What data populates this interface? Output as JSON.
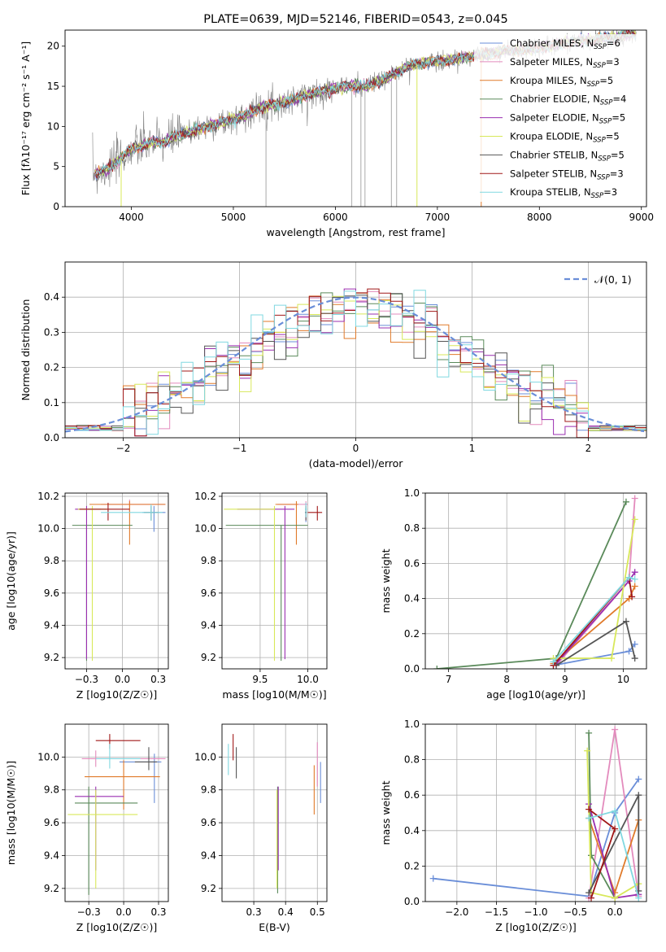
{
  "colors": {
    "Chabrier MILES": "#6a8ed8",
    "Salpeter MILES": "#e38bbd",
    "Kroupa MILES": "#e07a2a",
    "Chabrier ELODIE": "#5a8a5a",
    "Salpeter ELODIE": "#9a2fb0",
    "Kroupa ELODIE": "#d8e85a",
    "Chabrier STELIB": "#555555",
    "Salpeter STELIB": "#a01818",
    "Kroupa STELIB": "#80d8e0",
    "data": "#808080",
    "normal": "#6a8ed8"
  },
  "chart_data": [
    {
      "id": "spectrum",
      "type": "line",
      "title": "PLATE=0639, MJD=52146, FIBERID=0543, z=0.045",
      "xlabel": "wavelength [Angstrom, rest frame]",
      "ylabel": "Flux [fλ10⁻¹⁷ erg cm⁻² s⁻¹ A⁻¹]",
      "xlim": [
        3350,
        9050
      ],
      "ylim": [
        0,
        22
      ],
      "xticks": [
        4000,
        5000,
        6000,
        7000,
        8000,
        9000
      ],
      "yticks": [
        0,
        5,
        10,
        15,
        20
      ],
      "legend_position": "top-right",
      "legend": [
        {
          "name": "Chabrier MILES",
          "nssp": "6"
        },
        {
          "name": "Salpeter MILES",
          "nssp": "3"
        },
        {
          "name": "Kroupa MILES",
          "nssp": "5"
        },
        {
          "name": "Chabrier ELODIE",
          "nssp": "4"
        },
        {
          "name": "Salpeter ELODIE",
          "nssp": "5"
        },
        {
          "name": "Kroupa ELODIE",
          "nssp": "5"
        },
        {
          "name": "Chabrier STELIB",
          "nssp": "5"
        },
        {
          "name": "Salpeter STELIB",
          "nssp": "3"
        },
        {
          "name": "Kroupa STELIB",
          "nssp": "3"
        }
      ],
      "legend_suffix": "SSP",
      "legend_prefix": "N",
      "continuum": {
        "x": [
          3620,
          3700,
          3800,
          3900,
          4000,
          4100,
          4200,
          4300,
          4400,
          4500,
          4700,
          4900,
          5100,
          5300,
          5500,
          5700,
          5900,
          6100,
          6300,
          6500,
          6700,
          6900,
          7100,
          7300,
          7500,
          7700,
          7900,
          8100,
          8300,
          8500,
          8700,
          8900
        ],
        "y": [
          4.2,
          4.3,
          5.0,
          6.0,
          7.2,
          7.5,
          8.0,
          8.0,
          8.6,
          9.0,
          9.8,
          10.5,
          11.3,
          12.5,
          13.0,
          13.8,
          14.5,
          15.0,
          15.0,
          16.0,
          17.5,
          18.0,
          18.2,
          18.7,
          19.0,
          19.5,
          19.5,
          20.0,
          20.5,
          20.8,
          21.0,
          21.5
        ]
      }
    },
    {
      "id": "residuals",
      "type": "histogram",
      "xlabel": "(data-model)/error",
      "ylabel": "Normed distribution",
      "xlim": [
        -2.5,
        2.5
      ],
      "ylim": [
        0,
        0.5
      ],
      "xticks": [
        -2,
        -1,
        0,
        1,
        2
      ],
      "yticks": [
        0.0,
        0.1,
        0.2,
        0.3,
        0.4
      ],
      "grid": true,
      "legend_position": "top-right",
      "normal_label": "𝒩(0, 1)",
      "bin_width": 0.1
    },
    {
      "id": "age-vs-Z",
      "type": "errorbar",
      "xlabel": "Z [log10(Z/Z☉)]",
      "ylabel": "age  [log10(age/yr)]",
      "xlim": [
        -0.4,
        0.32
      ],
      "ylim": [
        9.13,
        10.22
      ],
      "xticks": [
        -0.25,
        0.0,
        0.25
      ],
      "yticks": [
        9.2,
        9.4,
        9.6,
        9.8,
        10.0,
        10.2
      ],
      "grid": true,
      "points": [
        {
          "model": "Chabrier MILES",
          "x": 0.22,
          "xerr": [
            0.08,
            0.08
          ],
          "y": 10.1,
          "yerr": [
            0.12,
            0.04
          ]
        },
        {
          "model": "Salpeter MILES",
          "x": 0.05,
          "xerr": [
            0.2,
            0.25
          ],
          "y": 10.15,
          "yerr": [
            0.05,
            0.03
          ]
        },
        {
          "model": "Kroupa MILES",
          "x": 0.05,
          "xerr": [
            0.28,
            0.25
          ],
          "y": 10.15,
          "yerr": [
            0.25,
            0.02
          ]
        },
        {
          "model": "Chabrier ELODIE",
          "x": -0.25,
          "xerr": [
            0.1,
            0.32
          ],
          "y": 10.02,
          "yerr": [
            0.84,
            0.0
          ]
        },
        {
          "model": "Salpeter ELODIE",
          "x": -0.25,
          "xerr": [
            0.08,
            0.1
          ],
          "y": 10.12,
          "yerr": [
            0.93,
            0.02
          ]
        },
        {
          "model": "Kroupa ELODIE",
          "x": -0.21,
          "xerr": [
            0.1,
            0.1
          ],
          "y": 10.12,
          "yerr": [
            0.94,
            0.02
          ]
        },
        {
          "model": "Chabrier STELIB",
          "x": 0.2,
          "xerr": [
            0.05,
            0.05
          ],
          "y": 10.1,
          "yerr": [
            0.05,
            0.04
          ]
        },
        {
          "model": "Salpeter STELIB",
          "x": -0.1,
          "xerr": [
            0.2,
            0.15
          ],
          "y": 10.12,
          "yerr": [
            0.07,
            0.04
          ]
        },
        {
          "model": "Kroupa STELIB",
          "x": 0.2,
          "xerr": [
            0.35,
            0.08
          ],
          "y": 10.1,
          "yerr": [
            0.05,
            0.05
          ]
        }
      ]
    },
    {
      "id": "age-vs-mass",
      "type": "errorbar",
      "xlabel": "mass [log10(M/M☉)]",
      "ylabel": "",
      "xlim": [
        9.1,
        10.2
      ],
      "ylim": [
        9.13,
        10.22
      ],
      "xticks": [
        9.5,
        10.0
      ],
      "yticks": [
        9.2,
        9.4,
        9.6,
        9.8,
        10.0,
        10.2
      ],
      "grid": true,
      "points": [
        {
          "model": "Chabrier MILES",
          "x": 9.98,
          "xerr": [
            0.01,
            0.01
          ],
          "y": 10.1,
          "yerr": [
            0.06,
            0.02
          ]
        },
        {
          "model": "Salpeter MILES",
          "x": 9.98,
          "xerr": [
            0.3,
            0.02
          ],
          "y": 10.15,
          "yerr": [
            0.1,
            0.02
          ]
        },
        {
          "model": "Kroupa MILES",
          "x": 9.88,
          "xerr": [
            0.22,
            0.02
          ],
          "y": 10.15,
          "yerr": [
            0.25,
            0.02
          ]
        },
        {
          "model": "Chabrier ELODIE",
          "x": 9.72,
          "xerr": [
            0.58,
            0.28
          ],
          "y": 10.02,
          "yerr": [
            0.84,
            0.0
          ]
        },
        {
          "model": "Salpeter ELODIE",
          "x": 9.76,
          "xerr": [
            0.5,
            0.1
          ],
          "y": 10.12,
          "yerr": [
            0.93,
            0.02
          ]
        },
        {
          "model": "Kroupa ELODIE",
          "x": 9.65,
          "xerr": [
            0.53,
            0.0
          ],
          "y": 10.12,
          "yerr": [
            0.94,
            0.02
          ]
        },
        {
          "model": "Chabrier STELIB",
          "x": 9.98,
          "xerr": [
            0.01,
            0.01
          ],
          "y": 10.1,
          "yerr": [
            0.05,
            0.04
          ]
        },
        {
          "model": "Salpeter STELIB",
          "x": 10.1,
          "xerr": [
            0.1,
            0.05
          ],
          "y": 10.1,
          "yerr": [
            0.05,
            0.04
          ]
        },
        {
          "model": "Kroupa STELIB",
          "x": 9.98,
          "xerr": [
            0.01,
            0.01
          ],
          "y": 10.12,
          "yerr": [
            0.05,
            0.04
          ]
        }
      ]
    },
    {
      "id": "weight-vs-age",
      "type": "line",
      "xlabel": "age  [log10(age/yr)]",
      "ylabel": "mass weight",
      "xlim": [
        6.6,
        10.4
      ],
      "ylim": [
        0,
        1.0
      ],
      "xticks": [
        7,
        8,
        9,
        10
      ],
      "yticks": [
        0.0,
        0.2,
        0.4,
        0.6,
        0.8,
        1.0
      ],
      "grid": true,
      "series": [
        {
          "model": "Chabrier MILES",
          "x": [
            8.8,
            10.1,
            10.2
          ],
          "y": [
            0.02,
            0.1,
            0.14
          ]
        },
        {
          "model": "Salpeter MILES",
          "x": [
            8.85,
            10.1,
            10.2
          ],
          "y": [
            0.02,
            0.5,
            0.97
          ]
        },
        {
          "model": "Kroupa MILES",
          "x": [
            8.8,
            10.1,
            10.2
          ],
          "y": [
            0.03,
            0.4,
            0.47
          ]
        },
        {
          "model": "Chabrier ELODIE",
          "x": [
            6.8,
            8.85,
            10.05
          ],
          "y": [
            0.0,
            0.06,
            0.95
          ]
        },
        {
          "model": "Salpeter ELODIE",
          "x": [
            8.85,
            10.1,
            10.2
          ],
          "y": [
            0.03,
            0.5,
            0.55
          ]
        },
        {
          "model": "Kroupa ELODIE",
          "x": [
            8.8,
            9.8,
            10.2
          ],
          "y": [
            0.06,
            0.06,
            0.85
          ]
        },
        {
          "model": "Chabrier STELIB",
          "x": [
            8.85,
            10.05,
            10.2
          ],
          "y": [
            0.02,
            0.27,
            0.06
          ]
        },
        {
          "model": "Salpeter STELIB",
          "x": [
            8.8,
            10.1,
            10.15
          ],
          "y": [
            0.02,
            0.52,
            0.41
          ]
        },
        {
          "model": "Kroupa STELIB",
          "x": [
            8.8,
            10.1,
            10.2
          ],
          "y": [
            0.04,
            0.52,
            0.51
          ]
        }
      ]
    },
    {
      "id": "mass-vs-Z",
      "type": "errorbar",
      "xlabel": "Z [log10(Z/Z☉)]",
      "ylabel": "mass [log10(M/M☉)]",
      "xlim": [
        -0.42,
        0.32
      ],
      "ylim": [
        9.12,
        10.2
      ],
      "xticks": [
        -0.25,
        0.0,
        0.25
      ],
      "yticks": [
        9.2,
        9.4,
        9.6,
        9.8,
        10.0
      ],
      "grid": true,
      "points": [
        {
          "model": "Chabrier MILES",
          "x": 0.22,
          "xerr": [
            0.25,
            0.05
          ],
          "y": 9.97,
          "yerr": [
            0.25,
            0.05
          ]
        },
        {
          "model": "Salpeter MILES",
          "x": -0.2,
          "xerr": [
            0.1,
            0.5
          ],
          "y": 9.99,
          "yerr": [
            0.05,
            0.05
          ]
        },
        {
          "model": "Kroupa MILES",
          "x": 0.0,
          "xerr": [
            0.28,
            0.26
          ],
          "y": 9.88,
          "yerr": [
            0.2,
            0.1
          ]
        },
        {
          "model": "Chabrier ELODIE",
          "x": -0.25,
          "xerr": [
            0.1,
            0.35
          ],
          "y": 9.72,
          "yerr": [
            0.56,
            0.1
          ]
        },
        {
          "model": "Salpeter ELODIE",
          "x": -0.2,
          "xerr": [
            0.15,
            0.2
          ],
          "y": 9.76,
          "yerr": [
            0.45,
            0.06
          ]
        },
        {
          "model": "Kroupa ELODIE",
          "x": -0.2,
          "xerr": [
            0.2,
            0.3
          ],
          "y": 9.65,
          "yerr": [
            0.45,
            0.15
          ]
        },
        {
          "model": "Chabrier STELIB",
          "x": 0.18,
          "xerr": [
            0.1,
            0.06
          ],
          "y": 9.97,
          "yerr": [
            0.05,
            0.09
          ]
        },
        {
          "model": "Salpeter STELIB",
          "x": -0.1,
          "xerr": [
            0.1,
            0.22
          ],
          "y": 10.1,
          "yerr": [
            0.05,
            0.04
          ]
        },
        {
          "model": "Kroupa STELIB",
          "x": -0.1,
          "xerr": [
            0.1,
            0.22
          ],
          "y": 9.99,
          "yerr": [
            0.06,
            0.09
          ]
        }
      ]
    },
    {
      "id": "mass-vs-ebv",
      "type": "errorbar",
      "xlabel": "E(B-V)",
      "ylabel": "",
      "xlim": [
        0.2,
        0.53
      ],
      "ylim": [
        9.12,
        10.2
      ],
      "xticks": [
        0.3,
        0.4,
        0.5
      ],
      "yticks": [
        9.2,
        9.4,
        9.6,
        9.8,
        10.0
      ],
      "grid": true,
      "points": [
        {
          "model": "Chabrier MILES",
          "x": 0.51,
          "yerr": [
            0.25,
            0.0
          ],
          "y": 9.97
        },
        {
          "model": "Salpeter MILES",
          "x": 0.5,
          "yerr": [
            0.15,
            0.12
          ],
          "y": 9.97
        },
        {
          "model": "Kroupa MILES",
          "x": 0.49,
          "yerr": [
            0.23,
            0.07
          ],
          "y": 9.88
        },
        {
          "model": "Chabrier ELODIE",
          "x": 0.375,
          "yerr": [
            0.55,
            0.1
          ],
          "y": 9.72
        },
        {
          "model": "Salpeter ELODIE",
          "x": 0.377,
          "yerr": [
            0.45,
            0.06
          ],
          "y": 9.76
        },
        {
          "model": "Kroupa ELODIE",
          "x": 0.373,
          "yerr": [
            0.45,
            0.15
          ],
          "y": 9.65
        },
        {
          "model": "Chabrier STELIB",
          "x": 0.245,
          "yerr": [
            0.1,
            0.09
          ],
          "y": 9.97
        },
        {
          "model": "Salpeter STELIB",
          "x": 0.235,
          "yerr": [
            0.1,
            0.06
          ],
          "y": 10.08
        },
        {
          "model": "Kroupa STELIB",
          "x": 0.22,
          "yerr": [
            0.1,
            0.09
          ],
          "y": 9.99
        }
      ]
    },
    {
      "id": "weight-vs-Z",
      "type": "line",
      "xlabel": "Z [log10(Z/Z☉)]",
      "ylabel": "mass weight",
      "xlim": [
        -2.4,
        0.4
      ],
      "ylim": [
        0,
        1.0
      ],
      "xticks": [
        -2.0,
        -1.5,
        -1.0,
        -0.5,
        0.0
      ],
      "yticks": [
        0.0,
        0.2,
        0.4,
        0.6,
        0.8,
        1.0
      ],
      "grid": true,
      "series": [
        {
          "model": "Chabrier MILES",
          "x": [
            -2.3,
            -0.33,
            0.0,
            0.3
          ],
          "y": [
            0.13,
            0.03,
            0.5,
            0.69
          ]
        },
        {
          "model": "Salpeter MILES",
          "x": [
            -0.33,
            0.0,
            0.3
          ],
          "y": [
            0.02,
            0.97,
            0.03
          ]
        },
        {
          "model": "Kroupa MILES",
          "x": [
            -0.33,
            0.0,
            0.3
          ],
          "y": [
            0.47,
            0.05,
            0.46
          ]
        },
        {
          "model": "Chabrier ELODIE",
          "x": [
            -0.33,
            -0.3,
            0.0
          ],
          "y": [
            0.95,
            0.26,
            0.02
          ]
        },
        {
          "model": "Salpeter ELODIE",
          "x": [
            -0.33,
            0.0,
            0.3
          ],
          "y": [
            0.55,
            0.02,
            0.04
          ]
        },
        {
          "model": "Kroupa ELODIE",
          "x": [
            -0.35,
            -0.3,
            0.0,
            0.3
          ],
          "y": [
            0.85,
            0.05,
            0.02,
            0.1
          ]
        },
        {
          "model": "Chabrier STELIB",
          "x": [
            -0.33,
            0.3,
            0.3
          ],
          "y": [
            0.05,
            0.6,
            0.06
          ]
        },
        {
          "model": "Salpeter STELIB",
          "x": [
            -0.33,
            0.0,
            -0.3
          ],
          "y": [
            0.52,
            0.41,
            0.02
          ]
        },
        {
          "model": "Kroupa STELIB",
          "x": [
            -0.33,
            0.0,
            0.3
          ],
          "y": [
            0.47,
            0.51,
            0.02
          ]
        }
      ]
    }
  ]
}
